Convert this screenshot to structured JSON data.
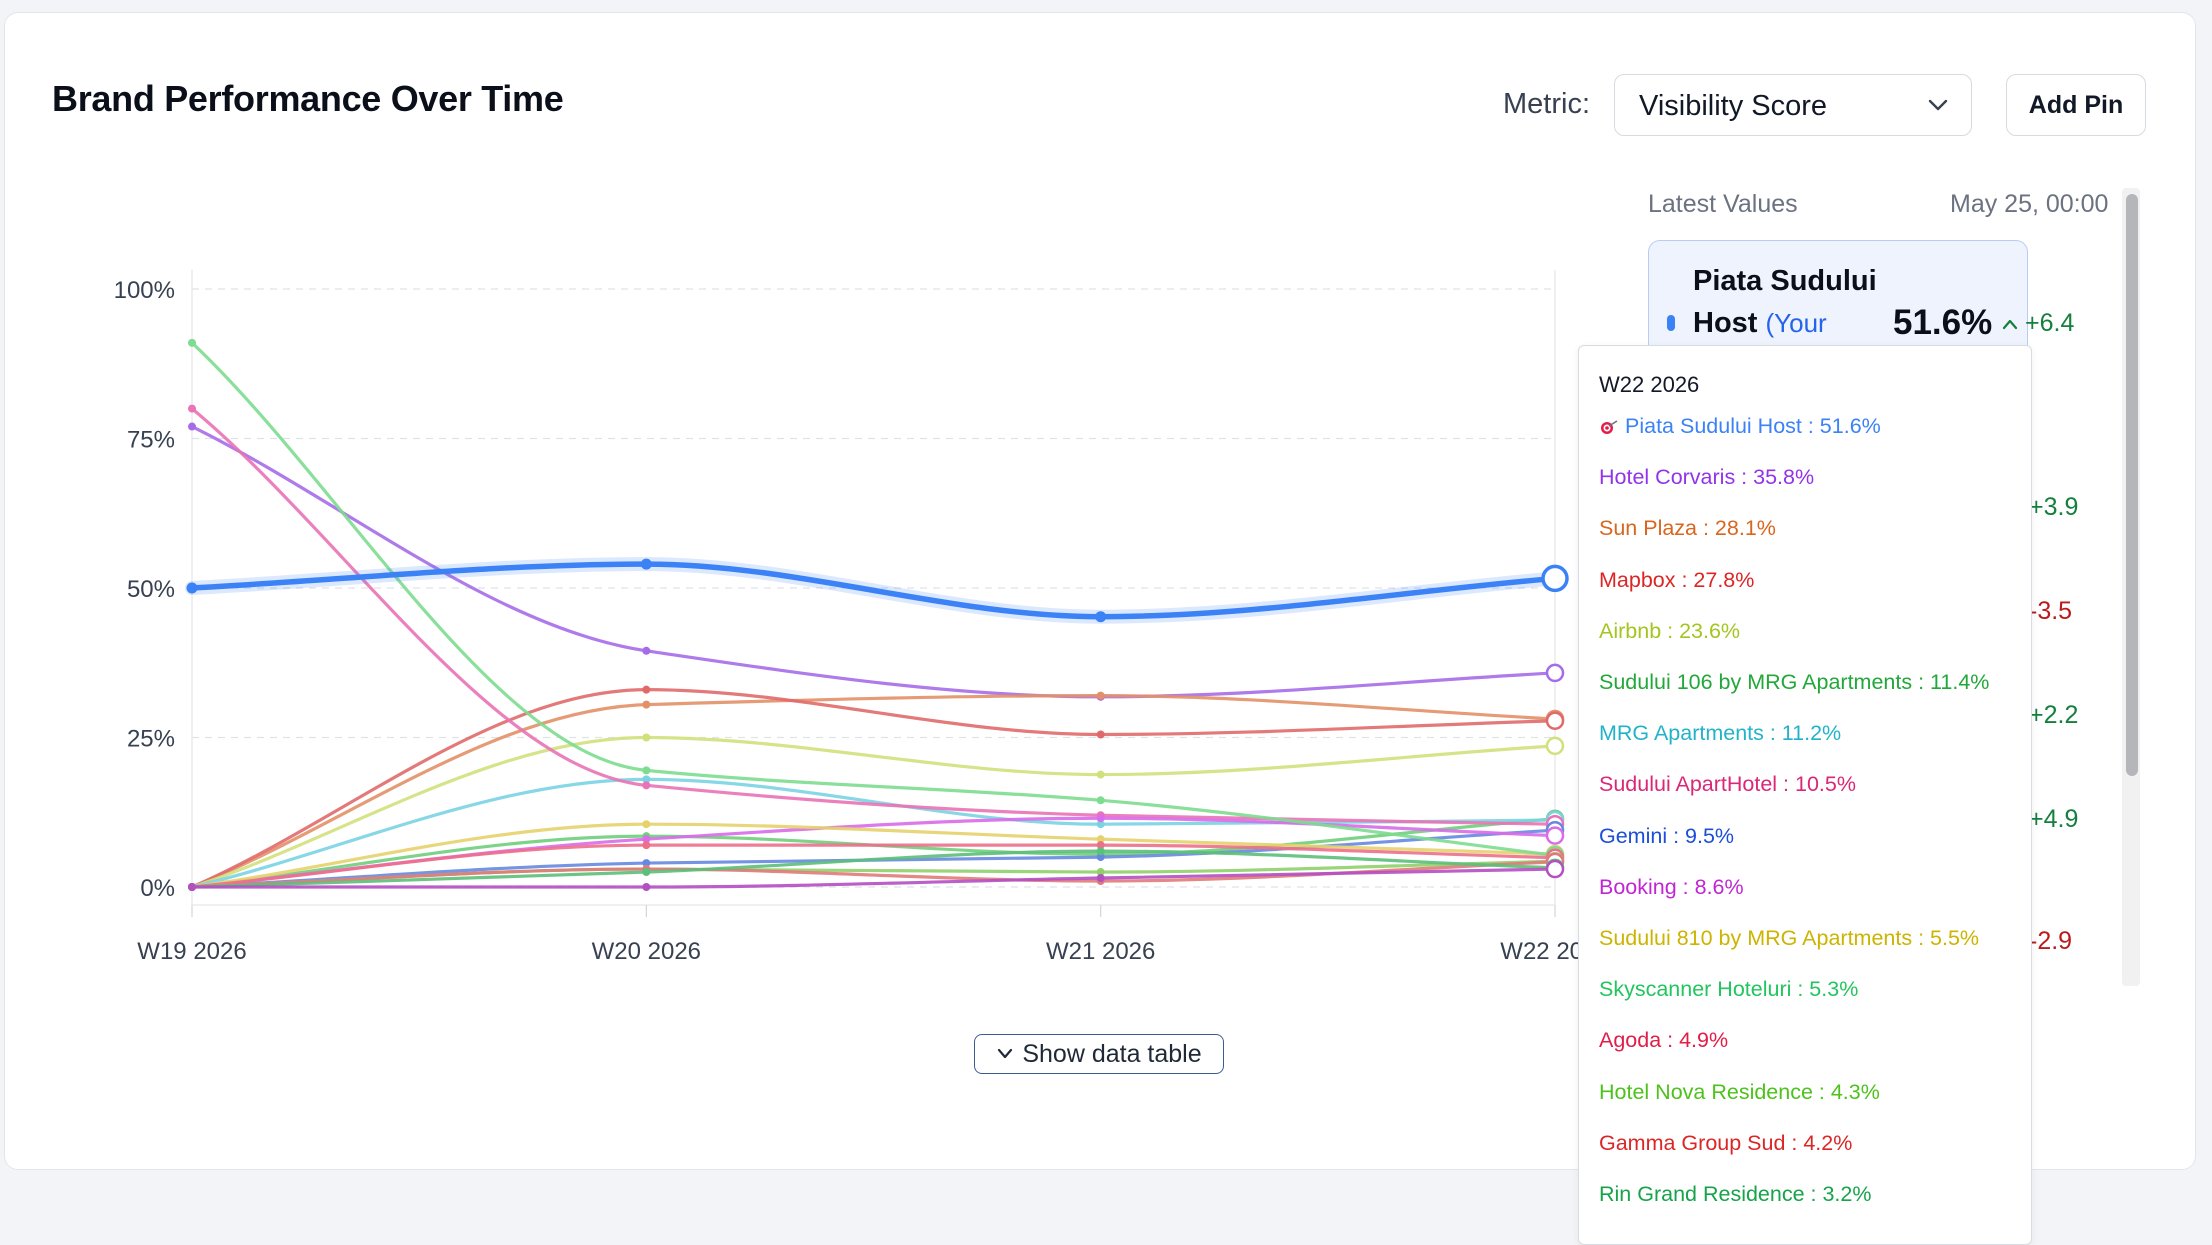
{
  "header": {
    "title": "Brand Performance Over Time",
    "metric_label": "Metric:",
    "metric_value": "Visibility Score",
    "add_pin_label": "Add Pin"
  },
  "show_table_label": "Show data table",
  "side_panel": {
    "heading": "Latest Values",
    "date": "May 25, 00:00",
    "pinned": {
      "name_line1": "Piata Sudului",
      "name_line2": "Host",
      "name_suffix": "(Your",
      "value": "51.6%",
      "delta": "+6.4"
    },
    "cards": [
      {
        "delta": "+3.9",
        "direction": "up"
      },
      {
        "delta": "-3.5",
        "direction": "down"
      },
      {
        "delta": "+2.2",
        "direction": "up"
      },
      {
        "delta": "+4.9",
        "direction": "up"
      },
      {
        "delta": "-2.9",
        "direction": "down"
      }
    ]
  },
  "tooltip": {
    "title": "W22 2026",
    "rows": [
      {
        "label": "Piata Sudului Host : 51.6%",
        "color": "#3b82f6",
        "pinned": true
      },
      {
        "label": "Hotel Corvaris : 35.8%",
        "color": "#9333ea"
      },
      {
        "label": "Sun Plaza : 28.1%",
        "color": "#d9651e"
      },
      {
        "label": "Mapbox : 27.8%",
        "color": "#dc2626"
      },
      {
        "label": "Airbnb : 23.6%",
        "color": "#a3c520"
      },
      {
        "label": "Sudului 106 by MRG Apartments : 11.4%",
        "color": "#22a83a"
      },
      {
        "label": "MRG Apartments : 11.2%",
        "color": "#22b3c9"
      },
      {
        "label": "Sudului ApartHotel : 10.5%",
        "color": "#db2777"
      },
      {
        "label": "Gemini : 9.5%",
        "color": "#1d4ed8"
      },
      {
        "label": "Booking : 8.6%",
        "color": "#c026d3"
      },
      {
        "label": "Sudului 810 by MRG Apartments : 5.5%",
        "color": "#ccb400"
      },
      {
        "label": "Skyscanner Hoteluri : 5.3%",
        "color": "#22c55e"
      },
      {
        "label": "Agoda : 4.9%",
        "color": "#e11d48"
      },
      {
        "label": "Hotel Nova Residence : 4.3%",
        "color": "#4ec21c"
      },
      {
        "label": "Gamma Group Sud : 4.2%",
        "color": "#dc2626"
      },
      {
        "label": "Rin Grand Residence : 3.2%",
        "color": "#16a34a"
      }
    ]
  },
  "chart_data": {
    "type": "line",
    "x": [
      "W19 2026",
      "W20 2026",
      "W21 2026",
      "W22 2026"
    ],
    "y_ticks": [
      "0%",
      "25%",
      "50%",
      "75%",
      "100%"
    ],
    "ylim": [
      0,
      100
    ],
    "grid": true,
    "series": [
      {
        "name": "Piata Sudului Host",
        "color": "#3b82f6",
        "values": [
          50.0,
          54.0,
          45.2,
          51.6
        ],
        "highlight": true
      },
      {
        "name": "Hotel Corvaris",
        "color": "#a66be8",
        "values": [
          77.0,
          39.5,
          31.8,
          35.8
        ]
      },
      {
        "name": "Sun Plaza",
        "color": "#e39068",
        "values": [
          0.0,
          30.5,
          32.0,
          28.1
        ]
      },
      {
        "name": "Mapbox",
        "color": "#e06a6a",
        "values": [
          0.0,
          33.0,
          25.5,
          27.8
        ]
      },
      {
        "name": "Airbnb",
        "color": "#d2e07c",
        "values": [
          0.0,
          25.0,
          18.8,
          23.6
        ]
      },
      {
        "name": "Sudului 106 by MRG Apartments",
        "color": "#6fcf7c",
        "values": [
          0.0,
          8.5,
          5.5,
          11.4
        ]
      },
      {
        "name": "MRG Apartments",
        "color": "#7ad3e3",
        "values": [
          0.0,
          18.0,
          10.5,
          11.2
        ]
      },
      {
        "name": "Sudului ApartHotel",
        "color": "#e973b5",
        "values": [
          80.0,
          17.0,
          12.0,
          10.5
        ]
      },
      {
        "name": "Gemini",
        "color": "#6688e0",
        "values": [
          0.0,
          4.0,
          5.0,
          9.5
        ]
      },
      {
        "name": "Booking",
        "color": "#d96ce9",
        "values": [
          0.0,
          8.0,
          11.5,
          8.6
        ]
      },
      {
        "name": "Sudului 810 by MRG Apartments",
        "color": "#e6d26c",
        "values": [
          0.0,
          10.5,
          8.0,
          5.5
        ]
      },
      {
        "name": "Skyscanner Hoteluri",
        "color": "#7ddc8f",
        "values": [
          91.0,
          19.5,
          14.5,
          5.3
        ]
      },
      {
        "name": "Agoda",
        "color": "#ed6f8a",
        "values": [
          0.0,
          7.0,
          7.0,
          4.9
        ]
      },
      {
        "name": "Hotel Nova Residence",
        "color": "#8fd06a",
        "values": [
          0.0,
          3.0,
          2.5,
          4.3
        ]
      },
      {
        "name": "Gamma Group Sud",
        "color": "#e07a7a",
        "values": [
          0.0,
          3.0,
          1.0,
          4.2
        ]
      },
      {
        "name": "Rin Grand Residence",
        "color": "#5cbf7a",
        "values": [
          0.0,
          2.5,
          6.0,
          3.2
        ]
      },
      {
        "name": "",
        "color": "#b44fc2",
        "values": [
          0.0,
          0.0,
          1.5,
          3.0
        ]
      }
    ]
  },
  "colors": {
    "accent": "#3b82f6",
    "positive": "#15803d",
    "negative": "#b91c1c"
  }
}
